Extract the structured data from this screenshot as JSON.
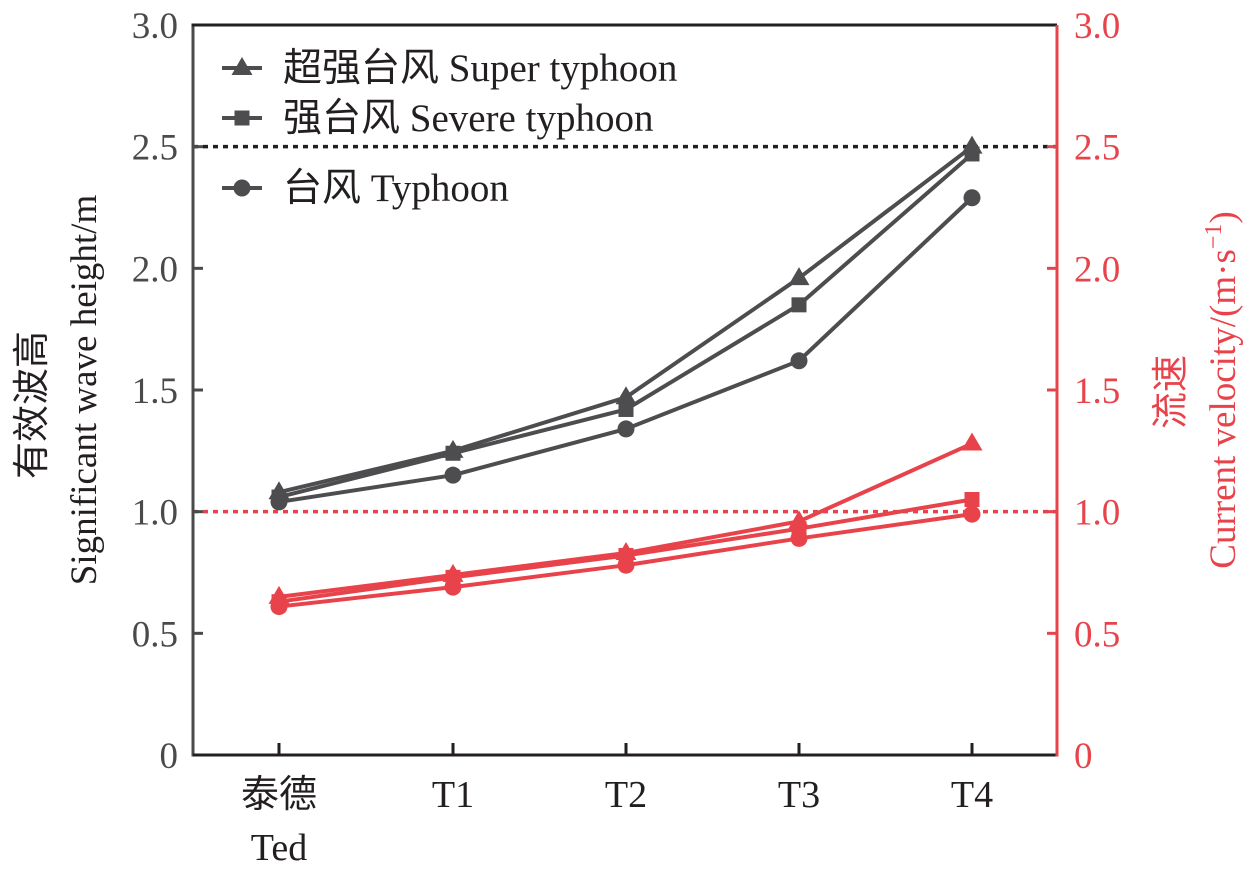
{
  "chart_data": {
    "type": "line",
    "title": "",
    "categories": [
      "泰德\nTed",
      "T1",
      "T2",
      "T3",
      "T4"
    ],
    "category_lines": [
      [
        "泰德",
        "Ted"
      ],
      [
        "T1"
      ],
      [
        "T2"
      ],
      [
        "T3"
      ],
      [
        "T4"
      ]
    ],
    "xlabel": "",
    "ylabel_left": {
      "cn": "有效波高",
      "en": "Significant wave height/m"
    },
    "ylabel_right": {
      "cn": "流速",
      "en": "Current velocity/(m·s",
      "sup": "−1",
      "close": ")"
    },
    "ylim_left": [
      0,
      3.0
    ],
    "ylim_right": [
      0,
      3.0
    ],
    "yticks_left": [
      "0",
      "0.5",
      "1.0",
      "1.5",
      "2.0",
      "2.5",
      "3.0"
    ],
    "yticks_right": [
      "0",
      "0.5",
      "1.0",
      "1.5",
      "2.0",
      "2.5",
      "3.0"
    ],
    "ytick_values": [
      0,
      0.5,
      1.0,
      1.5,
      2.0,
      2.5,
      3.0
    ],
    "grid": false,
    "legend_position": "top-left",
    "reference_lines": [
      {
        "axis": "left",
        "value": 2.5,
        "color": "#231f20",
        "style": "dotted"
      },
      {
        "axis": "right",
        "value": 1.0,
        "color": "#e8434b",
        "style": "dotted"
      }
    ],
    "colors": {
      "wave": "#4d4d4f",
      "current": "#e8434b",
      "axis_left": "#4a4a4c",
      "axis_right": "#e8434b"
    },
    "legend": [
      {
        "label": "超强台风 Super typhoon",
        "marker": "triangle"
      },
      {
        "label": "强台风 Severe typhoon",
        "marker": "square"
      },
      {
        "label": "台风 Typhoon",
        "marker": "circle"
      }
    ],
    "series": [
      {
        "name": "超强台风 Super typhoon - 有效波高",
        "axis": "left",
        "marker": "triangle",
        "color": "#4d4d4f",
        "values": [
          1.08,
          1.25,
          1.47,
          1.96,
          2.5
        ]
      },
      {
        "name": "强台风 Severe typhoon - 有效波高",
        "axis": "left",
        "marker": "square",
        "color": "#4d4d4f",
        "values": [
          1.06,
          1.24,
          1.42,
          1.85,
          2.47
        ]
      },
      {
        "name": "台风 Typhoon - 有效波高",
        "axis": "left",
        "marker": "circle",
        "color": "#4d4d4f",
        "values": [
          1.04,
          1.15,
          1.34,
          1.62,
          2.29
        ]
      },
      {
        "name": "超强台风 Super typhoon - 流速",
        "axis": "right",
        "marker": "triangle",
        "color": "#e8434b",
        "values": [
          0.65,
          0.74,
          0.83,
          0.96,
          1.28
        ]
      },
      {
        "name": "强台风 Severe typhoon - 流速",
        "axis": "right",
        "marker": "square",
        "color": "#e8434b",
        "values": [
          0.63,
          0.73,
          0.82,
          0.93,
          1.05
        ]
      },
      {
        "name": "台风 Typhoon - 流速",
        "axis": "right",
        "marker": "circle",
        "color": "#e8434b",
        "values": [
          0.61,
          0.69,
          0.78,
          0.89,
          0.99
        ]
      }
    ]
  }
}
